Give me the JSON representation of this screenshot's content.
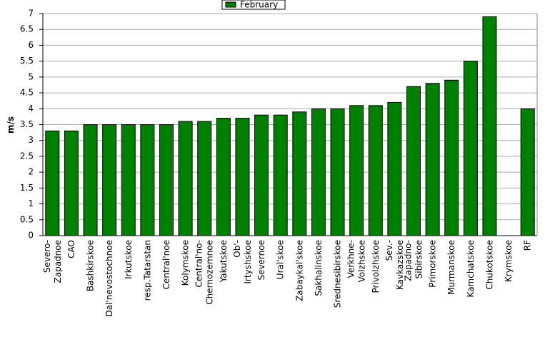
{
  "chart_data": {
    "type": "bar",
    "y_label": "m/s",
    "categories": [
      "Severo-\nZapadnoe",
      "CAO",
      "Bashkirskoe",
      "Dal'nevostochnoe",
      "Irkutskoe",
      "resp.Tatarstan",
      "Central'noe",
      "Kolymskoe",
      "Central'no-\nChernozemnoe",
      "Yakutskoe",
      "Ob'-\nIrtyshskoe",
      "Severnoe",
      "Ural'skoe",
      "Zabaykal'skoe",
      "Sakhalinskoe",
      "Srednesibirskoe",
      "Verkhne-\nVolzhskoe",
      "Privolzhskoe",
      "Sev.-\nKavkazskoe",
      "Zapadno-\nSibirskoe",
      "Primorskoe",
      "Murmanskoe",
      "Kamchatskoe",
      "Chukotskoe",
      "Krymskoe",
      "RF"
    ],
    "series": [
      {
        "name": "February",
        "color": "#008000",
        "values": [
          3.3,
          3.3,
          3.5,
          3.5,
          3.5,
          3.5,
          3.5,
          3.6,
          3.6,
          3.7,
          3.7,
          3.8,
          3.8,
          3.9,
          4.0,
          4.0,
          4.1,
          4.1,
          4.2,
          4.7,
          4.8,
          4.9,
          5.5,
          6.9,
          null,
          4.0
        ]
      }
    ],
    "ylim": [
      0,
      7
    ],
    "yticks": [
      0,
      0.5,
      1,
      1.5,
      2,
      2.5,
      3,
      3.5,
      4,
      4.5,
      5,
      5.5,
      6,
      6.5,
      7
    ],
    "grid": true,
    "legend": "top"
  }
}
